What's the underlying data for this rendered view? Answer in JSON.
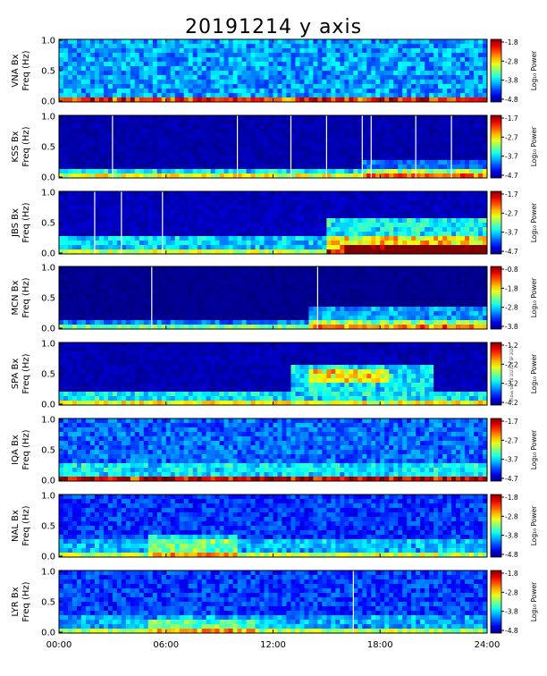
{
  "title": "20191214 y axis",
  "side_note": "idl.box tab 18 1023:28 SP 2020",
  "time_ticks": [
    "00:00",
    "06:00",
    "12:00",
    "18:00",
    "24:00"
  ],
  "y_ticks": [
    "0.0",
    "0.5",
    "1.0"
  ],
  "colorbar_label": "Log₁₀ Power",
  "chart_data": [
    {
      "type": "heatmap",
      "station": "VNA",
      "component": "Bx",
      "ylabel": "Freq (Hz)",
      "xlim": [
        0,
        24
      ],
      "ylim": [
        0,
        1.0
      ],
      "clim": [
        -4.8,
        -1.8
      ],
      "cticks": [
        "-1.8",
        "-2.8",
        "-3.8",
        "-4.8"
      ],
      "noise": 0.35,
      "bg": 0.5,
      "events": [
        [
          0,
          24,
          0,
          0.06,
          0.35
        ]
      ],
      "vlines": [],
      "cmap": "jet"
    },
    {
      "type": "heatmap",
      "station": "KSS",
      "component": "Bx",
      "ylabel": "Freq (Hz)",
      "xlim": [
        0,
        24
      ],
      "ylim": [
        0,
        1.0
      ],
      "clim": [
        -4.7,
        -1.7
      ],
      "cticks": [
        "-1.7",
        "-2.7",
        "-3.7",
        "-4.7"
      ],
      "noise": 0.08,
      "bg": 0.05,
      "events": [
        [
          0,
          24,
          0,
          0.15,
          0.35
        ],
        [
          17,
          24,
          0,
          0.25,
          0.2
        ]
      ],
      "vlines": [
        3,
        10,
        13,
        15,
        17,
        17.5,
        20,
        22
      ],
      "cmap": "jet"
    },
    {
      "type": "heatmap",
      "station": "JBS",
      "component": "Bx",
      "ylabel": "Freq (Hz)",
      "xlim": [
        0,
        24
      ],
      "ylim": [
        0,
        1.0
      ],
      "clim": [
        -4.7,
        -1.7
      ],
      "cticks": [
        "-1.7",
        "-2.7",
        "-3.7",
        "-4.7"
      ],
      "noise": 0.1,
      "bg": 0.08,
      "events": [
        [
          0,
          24,
          0,
          0.25,
          0.3
        ],
        [
          15,
          24,
          0,
          0.6,
          0.35
        ],
        [
          16,
          24,
          0,
          0.15,
          0.55
        ]
      ],
      "vlines": [
        2,
        3.5,
        5.8
      ],
      "cmap": "jet"
    },
    {
      "type": "heatmap",
      "station": "MCN",
      "component": "Bx",
      "ylabel": "Freq (Hz)",
      "xlim": [
        0,
        24
      ],
      "ylim": [
        0,
        1.0
      ],
      "clim": [
        -3.8,
        -0.8
      ],
      "cticks": [
        "-0.8",
        "-1.8",
        "-2.8",
        "-3.8"
      ],
      "noise": 0.05,
      "bg": 0.0,
      "events": [
        [
          0,
          24,
          0,
          0.15,
          0.25
        ],
        [
          14,
          24,
          0,
          0.35,
          0.3
        ]
      ],
      "vlines": [
        5.2,
        14.5
      ],
      "cmap": "jet"
    },
    {
      "type": "heatmap",
      "station": "SPA",
      "component": "Bx",
      "ylabel": "Freq (Hz)",
      "xlim": [
        0,
        24
      ],
      "ylim": [
        0,
        1.0
      ],
      "clim": [
        -4.2,
        -1.2
      ],
      "cticks": [
        "-1.2",
        "-2.2",
        "-3.2",
        "-4.2"
      ],
      "noise": 0.1,
      "bg": 0.05,
      "events": [
        [
          0,
          24,
          0,
          0.2,
          0.35
        ],
        [
          13,
          21,
          0.2,
          0.65,
          0.35
        ],
        [
          14,
          18.5,
          0.35,
          0.6,
          0.3
        ]
      ],
      "vlines": [],
      "cmap": "jet"
    },
    {
      "type": "heatmap",
      "station": "IQA",
      "component": "Bx",
      "ylabel": "Freq (Hz)",
      "xlim": [
        0,
        24
      ],
      "ylim": [
        0,
        1.0
      ],
      "clim": [
        -4.7,
        -1.7
      ],
      "cticks": [
        "-1.7",
        "-2.7",
        "-3.7",
        "-4.7"
      ],
      "noise": 0.3,
      "bg": 0.38,
      "events": [
        [
          0,
          24,
          0,
          0.3,
          0.15
        ],
        [
          0,
          24,
          0,
          0.05,
          0.35
        ]
      ],
      "vlines": [],
      "cmap": "jet"
    },
    {
      "type": "heatmap",
      "station": "NAL",
      "component": "Bx",
      "ylabel": "Freq (Hz)",
      "xlim": [
        0,
        24
      ],
      "ylim": [
        0,
        1.0
      ],
      "clim": [
        -4.8,
        -1.8
      ],
      "cticks": [
        "-1.8",
        "-2.8",
        "-3.8",
        "-4.8"
      ],
      "noise": 0.28,
      "bg": 0.25,
      "events": [
        [
          0,
          24,
          0,
          0.3,
          0.15
        ],
        [
          5,
          10,
          0,
          0.35,
          0.2
        ]
      ],
      "vlines": [],
      "cmap": "jet"
    },
    {
      "type": "heatmap",
      "station": "LYR",
      "component": "Bx",
      "ylabel": "Freq (Hz)",
      "xlim": [
        0,
        24
      ],
      "ylim": [
        0,
        1.0
      ],
      "clim": [
        -4.8,
        -1.8
      ],
      "cticks": [
        "-1.8",
        "-2.8",
        "-3.8",
        "-4.8"
      ],
      "noise": 0.28,
      "bg": 0.28,
      "events": [
        [
          0,
          24,
          0,
          0.25,
          0.12
        ],
        [
          5,
          11,
          0,
          0.2,
          0.2
        ]
      ],
      "vlines": [
        16.5
      ],
      "cmap": "jet"
    }
  ]
}
